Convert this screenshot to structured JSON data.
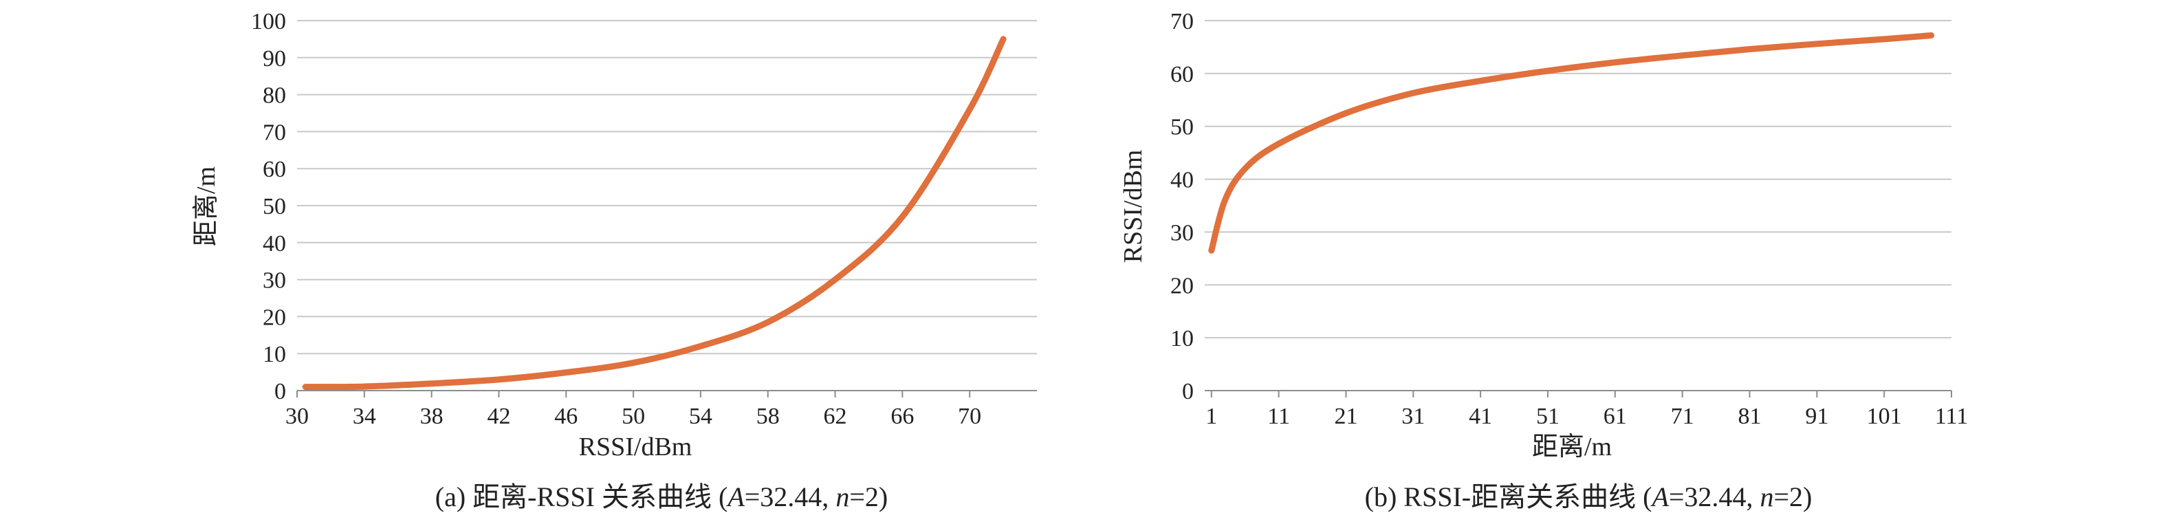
{
  "colors": {
    "curve": "#E0703C",
    "grid": "#c8c8c8",
    "axis": "#8c8c8c"
  },
  "chart_data": [
    {
      "type": "line",
      "xlabel": "RSSI/dBm",
      "ylabel": "距离/m",
      "xlim": [
        30,
        74
      ],
      "ylim": [
        0,
        100
      ],
      "xticks": [
        "30",
        "34",
        "38",
        "42",
        "46",
        "50",
        "54",
        "58",
        "62",
        "66",
        "70"
      ],
      "yticks": [
        "0",
        "10",
        "20",
        "30",
        "40",
        "50",
        "60",
        "70",
        "80",
        "90",
        "100"
      ],
      "grid": "horizontal",
      "caption": {
        "prefix": "(a) 距离-RSSI 关系曲线 (",
        "a_var": "A",
        "a_val": "=32.44, ",
        "n_var": "n",
        "n_val": "=2)"
      },
      "series": [
        {
          "x": [
            30.5,
            34,
            38,
            42,
            46,
            50,
            54,
            58,
            62,
            66,
            70,
            72
          ],
          "y": [
            1.0,
            1.1,
            1.9,
            3.0,
            4.9,
            7.5,
            12,
            18.5,
            30,
            47,
            76,
            95
          ]
        }
      ]
    },
    {
      "type": "line",
      "xlabel": "距离/m",
      "ylabel": "RSSI/dBm",
      "xlim": [
        0,
        111
      ],
      "ylim": [
        0,
        70
      ],
      "xticks": [
        "1",
        "11",
        "21",
        "31",
        "41",
        "51",
        "61",
        "71",
        "81",
        "91",
        "101",
        "111"
      ],
      "yticks": [
        "0",
        "10",
        "20",
        "30",
        "40",
        "50",
        "60",
        "70"
      ],
      "grid": "horizontal",
      "caption": {
        "prefix": "(b) RSSI-距离关系曲线 (",
        "a_var": "A",
        "a_val": "=32.44, ",
        "n_var": "n",
        "n_val": "=2)"
      },
      "series": [
        {
          "x": [
            1,
            3,
            6,
            11,
            21,
            31,
            41,
            51,
            61,
            71,
            81,
            91,
            101,
            108
          ],
          "y": [
            26.5,
            36,
            42,
            46.7,
            52.5,
            56.3,
            58.6,
            60.5,
            62.1,
            63.4,
            64.6,
            65.6,
            66.5,
            67.2
          ]
        }
      ]
    }
  ]
}
